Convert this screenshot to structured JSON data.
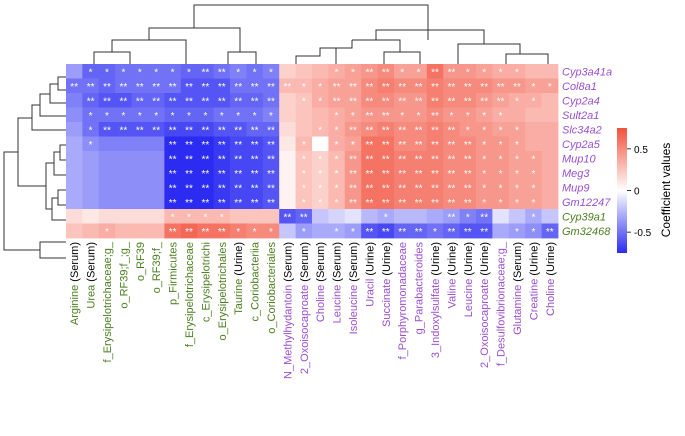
{
  "chart_data": {
    "type": "heatmap",
    "title": "",
    "legend_title": "Coefficient values",
    "legend_placement": "right",
    "color_scale": {
      "min": -0.75,
      "max": 0.75,
      "low": "#2b2bf2",
      "mid": "#ffffff",
      "high": "#f2503c"
    },
    "legend_ticks": [
      "0.5",
      "0",
      "-0.5"
    ],
    "legend_tick_values": [
      0.5,
      0,
      -0.5
    ],
    "rows": [
      {
        "label": "Cyp3a41a",
        "color": "#9b4fd0"
      },
      {
        "label": "Col8a1",
        "color": "#9b4fd0"
      },
      {
        "label": "Cyp2a4",
        "color": "#9b4fd0"
      },
      {
        "label": "Sult2a1",
        "color": "#9b4fd0"
      },
      {
        "label": "Slc34a2",
        "color": "#9b4fd0"
      },
      {
        "label": "Cyp2a5",
        "color": "#9b4fd0"
      },
      {
        "label": "Mup10",
        "color": "#9b4fd0"
      },
      {
        "label": "Meg3",
        "color": "#9b4fd0"
      },
      {
        "label": "Mup9",
        "color": "#9b4fd0"
      },
      {
        "label": "Gm12247",
        "color": "#9b4fd0"
      },
      {
        "label": "Cyp39a1",
        "color": "#4a7f1f"
      },
      {
        "label": "Gm32468",
        "color": "#4a7f1f"
      }
    ],
    "columns": [
      {
        "name": "Arginine",
        "suffix": " (Serum)",
        "color": "#4a7f1f"
      },
      {
        "name": "Urea",
        "suffix": " (Serum)",
        "color": "#4a7f1f"
      },
      {
        "name": "f_Erysipelotrichaceae;g_",
        "suffix": "",
        "color": "#4a7f1f"
      },
      {
        "name": "o_RF39;f_;g_",
        "suffix": "",
        "color": "#4a7f1f"
      },
      {
        "name": "o_RF39",
        "suffix": "",
        "color": "#4a7f1f"
      },
      {
        "name": "o_RF39;f_",
        "suffix": "",
        "color": "#4a7f1f"
      },
      {
        "name": "p_Firmicutes",
        "suffix": "",
        "color": "#4a7f1f"
      },
      {
        "name": "f_Erysipelotrichaceae",
        "suffix": "",
        "color": "#4a7f1f"
      },
      {
        "name": "c_Erysipelotrichi",
        "suffix": "",
        "color": "#4a7f1f"
      },
      {
        "name": "o_Erysipelotrichales",
        "suffix": "",
        "color": "#4a7f1f"
      },
      {
        "name": "Taurine",
        "suffix": " (Urine)",
        "color": "#4a7f1f"
      },
      {
        "name": "c_Coriobacteriia",
        "suffix": "",
        "color": "#4a7f1f"
      },
      {
        "name": "o_Coriobacteriales",
        "suffix": "",
        "color": "#4a7f1f"
      },
      {
        "name": "N_Methylhydantoin",
        "suffix": " (Serum)",
        "color": "#9b4fd0"
      },
      {
        "name": "2_Oxoisocaproate",
        "suffix": " (Serum)",
        "color": "#9b4fd0"
      },
      {
        "name": "Choline",
        "suffix": " (Serum)",
        "color": "#9b4fd0"
      },
      {
        "name": "Leucine",
        "suffix": " (Serum)",
        "color": "#9b4fd0"
      },
      {
        "name": "Isoleucine",
        "suffix": " (Serum)",
        "color": "#9b4fd0"
      },
      {
        "name": "Uracil",
        "suffix": " (Urine)",
        "color": "#9b4fd0"
      },
      {
        "name": "Succinate",
        "suffix": " (Urine)",
        "color": "#9b4fd0"
      },
      {
        "name": "f_Porphyromonadaceae",
        "suffix": "",
        "color": "#9b4fd0"
      },
      {
        "name": "g_Parabacteroides",
        "suffix": "",
        "color": "#9b4fd0"
      },
      {
        "name": "3_Indoxylsulfate",
        "suffix": " (Urine)",
        "color": "#9b4fd0"
      },
      {
        "name": "Valine",
        "suffix": " (Urine)",
        "color": "#9b4fd0"
      },
      {
        "name": "Leucine",
        "suffix": " (Urine)",
        "color": "#9b4fd0"
      },
      {
        "name": "2_Oxoisocaproate",
        "suffix": " (Urine)",
        "color": "#9b4fd0"
      },
      {
        "name": "f_Desulfovibrionaceae;g_",
        "suffix": "",
        "color": "#9b4fd0"
      },
      {
        "name": "Glutamine",
        "suffix": " (Serum)",
        "color": "#9b4fd0"
      },
      {
        "name": "Creatine",
        "suffix": " (Urine)",
        "color": "#9b4fd0"
      },
      {
        "name": "Choline",
        "suffix": " (Urine)",
        "color": "#9b4fd0"
      }
    ],
    "values": [
      [
        -0.35,
        -0.55,
        -0.55,
        -0.5,
        -0.5,
        -0.5,
        -0.5,
        -0.55,
        -0.55,
        -0.5,
        -0.45,
        -0.5,
        -0.45,
        0.2,
        0.25,
        0.3,
        0.35,
        0.4,
        0.45,
        0.5,
        0.4,
        0.4,
        0.6,
        0.45,
        0.45,
        0.4,
        0.35,
        0.35,
        0.3,
        0.3
      ],
      [
        -0.5,
        -0.5,
        -0.55,
        -0.5,
        -0.5,
        -0.5,
        -0.5,
        -0.6,
        -0.6,
        -0.6,
        -0.5,
        -0.5,
        -0.5,
        0.3,
        0.3,
        0.35,
        0.4,
        0.4,
        0.5,
        0.55,
        0.5,
        0.5,
        0.55,
        0.5,
        0.5,
        0.5,
        0.45,
        0.45,
        0.4,
        0.4
      ],
      [
        -0.45,
        -0.55,
        -0.6,
        -0.6,
        -0.55,
        -0.55,
        -0.6,
        -0.6,
        -0.6,
        -0.6,
        -0.55,
        -0.55,
        -0.5,
        0.2,
        0.25,
        0.35,
        0.4,
        0.4,
        0.5,
        0.5,
        0.45,
        0.45,
        0.55,
        0.5,
        0.5,
        0.45,
        0.4,
        0.35,
        0.35,
        0.3
      ],
      [
        -0.4,
        -0.5,
        -0.5,
        -0.5,
        -0.5,
        -0.5,
        -0.55,
        -0.55,
        -0.55,
        -0.5,
        -0.5,
        -0.5,
        -0.45,
        0.2,
        0.25,
        0.3,
        0.35,
        0.4,
        0.45,
        0.45,
        0.45,
        0.45,
        0.5,
        0.45,
        0.45,
        0.4,
        0.35,
        0.35,
        0.3,
        0.3
      ],
      [
        -0.35,
        -0.5,
        -0.6,
        -0.6,
        -0.6,
        -0.6,
        -0.65,
        -0.65,
        -0.65,
        -0.6,
        -0.6,
        -0.55,
        -0.55,
        0.15,
        0.25,
        0.3,
        0.35,
        0.45,
        0.5,
        0.55,
        0.5,
        0.5,
        0.55,
        0.5,
        0.45,
        0.45,
        0.4,
        0.4,
        0.35,
        0.35
      ],
      [
        -0.3,
        -0.4,
        -0.45,
        -0.45,
        -0.45,
        -0.45,
        -0.75,
        -0.75,
        -0.75,
        -0.7,
        -0.65,
        -0.65,
        -0.6,
        0.1,
        0.3,
        0.0,
        0.35,
        0.4,
        0.6,
        0.6,
        0.5,
        0.5,
        0.55,
        0.5,
        0.5,
        0.45,
        0.45,
        0.4,
        0.35,
        0.35
      ],
      [
        -0.3,
        -0.35,
        -0.4,
        -0.4,
        -0.4,
        -0.4,
        -0.75,
        -0.75,
        -0.75,
        -0.7,
        -0.65,
        -0.65,
        -0.6,
        0.05,
        0.25,
        0.2,
        0.3,
        0.45,
        0.6,
        0.6,
        0.55,
        0.55,
        0.55,
        0.5,
        0.5,
        0.45,
        0.45,
        0.4,
        0.4,
        0.35
      ],
      [
        -0.3,
        -0.35,
        -0.4,
        -0.4,
        -0.4,
        -0.4,
        -0.75,
        -0.75,
        -0.75,
        -0.7,
        -0.65,
        -0.65,
        -0.6,
        0.05,
        0.25,
        0.2,
        0.3,
        0.45,
        0.6,
        0.6,
        0.55,
        0.55,
        0.55,
        0.5,
        0.5,
        0.45,
        0.45,
        0.4,
        0.4,
        0.35
      ],
      [
        -0.3,
        -0.35,
        -0.4,
        -0.4,
        -0.4,
        -0.4,
        -0.75,
        -0.75,
        -0.75,
        -0.7,
        -0.65,
        -0.65,
        -0.6,
        0.05,
        0.25,
        0.2,
        0.3,
        0.45,
        0.6,
        0.6,
        0.55,
        0.55,
        0.55,
        0.5,
        0.5,
        0.45,
        0.45,
        0.4,
        0.4,
        0.35
      ],
      [
        -0.3,
        -0.35,
        -0.4,
        -0.4,
        -0.4,
        -0.4,
        -0.75,
        -0.75,
        -0.75,
        -0.7,
        -0.65,
        -0.65,
        -0.6,
        0.05,
        0.25,
        0.2,
        0.3,
        0.45,
        0.6,
        0.6,
        0.55,
        0.55,
        0.55,
        0.5,
        0.5,
        0.45,
        0.45,
        0.4,
        0.4,
        0.35
      ],
      [
        0.15,
        0.1,
        0.15,
        0.15,
        0.15,
        0.15,
        0.3,
        0.3,
        0.3,
        0.3,
        0.25,
        0.25,
        0.25,
        -0.6,
        -0.55,
        -0.2,
        -0.15,
        -0.1,
        -0.25,
        -0.3,
        -0.25,
        -0.25,
        -0.3,
        -0.35,
        -0.45,
        -0.5,
        -0.1,
        -0.2,
        -0.3,
        -0.2
      ],
      [
        0.25,
        0.3,
        0.35,
        0.3,
        0.3,
        0.3,
        0.6,
        0.65,
        0.6,
        0.6,
        0.55,
        0.5,
        0.5,
        -0.2,
        -0.35,
        -0.3,
        -0.3,
        -0.35,
        -0.6,
        -0.65,
        -0.55,
        -0.55,
        -0.5,
        -0.55,
        -0.6,
        -0.6,
        -0.3,
        -0.35,
        -0.4,
        -0.55
      ]
    ],
    "significance": [
      [
        "",
        "*",
        "*",
        "*",
        "*",
        "*",
        "*",
        "*",
        "**",
        "**",
        "*",
        "*",
        "*",
        "",
        "",
        "",
        "*",
        "*",
        "**",
        "**",
        "*",
        "*",
        "**",
        "**",
        "*",
        "*",
        "*",
        "*",
        "",
        ""
      ],
      [
        "**",
        "**",
        "**",
        "**",
        "**",
        "**",
        "**",
        "**",
        "**",
        "**",
        "**",
        "**",
        "**",
        "**",
        "*",
        "*",
        "**",
        "**",
        "**",
        "**",
        "**",
        "**",
        "**",
        "**",
        "**",
        "**",
        "**",
        "**",
        "*",
        "*"
      ],
      [
        "",
        "**",
        "**",
        "**",
        "**",
        "**",
        "**",
        "**",
        "**",
        "**",
        "**",
        "**",
        "**",
        "",
        "*",
        "*",
        "**",
        "**",
        "**",
        "**",
        "**",
        "**",
        "**",
        "**",
        "**",
        "**",
        "**",
        "*",
        "*",
        ""
      ],
      [
        "",
        "*",
        "*",
        "*",
        "*",
        "*",
        "*",
        "*",
        "*",
        "*",
        "*",
        "*",
        "*",
        "",
        "",
        "",
        "*",
        "*",
        "**",
        "**",
        "*",
        "*",
        "**",
        "*",
        "*",
        "*",
        "*",
        "",
        "",
        ""
      ],
      [
        "",
        "*",
        "**",
        "**",
        "**",
        "**",
        "**",
        "**",
        "**",
        "**",
        "**",
        "**",
        "**",
        "",
        "",
        "*",
        "*",
        "**",
        "**",
        "**",
        "**",
        "**",
        "**",
        "**",
        "*",
        "*",
        "*",
        "*",
        "",
        ""
      ],
      [
        "",
        "*",
        "",
        "",
        "",
        "",
        "**",
        "**",
        "**",
        "**",
        "**",
        "**",
        "**",
        "",
        "*",
        "",
        "*",
        "*",
        "**",
        "**",
        "**",
        "**",
        "**",
        "**",
        "**",
        "*",
        "*",
        "*",
        "",
        ""
      ],
      [
        "",
        "",
        "",
        "",
        "",
        "",
        "**",
        "**",
        "**",
        "**",
        "**",
        "**",
        "**",
        "",
        "*",
        "*",
        "*",
        "**",
        "**",
        "**",
        "**",
        "**",
        "**",
        "**",
        "**",
        "*",
        "*",
        "*",
        "*",
        ""
      ],
      [
        "",
        "",
        "",
        "",
        "",
        "",
        "**",
        "**",
        "**",
        "**",
        "**",
        "**",
        "**",
        "",
        "*",
        "*",
        "*",
        "**",
        "**",
        "**",
        "**",
        "**",
        "**",
        "**",
        "**",
        "*",
        "*",
        "*",
        "*",
        ""
      ],
      [
        "",
        "",
        "",
        "",
        "",
        "",
        "**",
        "**",
        "**",
        "**",
        "**",
        "**",
        "**",
        "",
        "*",
        "*",
        "*",
        "**",
        "**",
        "**",
        "**",
        "**",
        "**",
        "**",
        "**",
        "*",
        "*",
        "*",
        "*",
        ""
      ],
      [
        "",
        "",
        "",
        "",
        "",
        "",
        "**",
        "**",
        "**",
        "**",
        "**",
        "**",
        "**",
        "",
        "*",
        "*",
        "*",
        "**",
        "**",
        "**",
        "**",
        "**",
        "**",
        "**",
        "**",
        "*",
        "*",
        "*",
        "*",
        ""
      ],
      [
        "",
        "",
        "",
        "",
        "",
        "",
        "*",
        "*",
        "*",
        "*",
        "",
        "",
        "",
        "**",
        "**",
        "",
        "",
        "",
        "",
        "*",
        "",
        "",
        "",
        "**",
        "*",
        "**",
        "",
        "",
        "*",
        ""
      ],
      [
        "",
        "",
        "*",
        "",
        "",
        "",
        "**",
        "**",
        "**",
        "**",
        "*",
        "*",
        "*",
        "",
        "*",
        "",
        "*",
        "*",
        "**",
        "**",
        "**",
        "**",
        "*",
        "**",
        "**",
        "**",
        "",
        "*",
        "*",
        "**"
      ]
    ]
  }
}
